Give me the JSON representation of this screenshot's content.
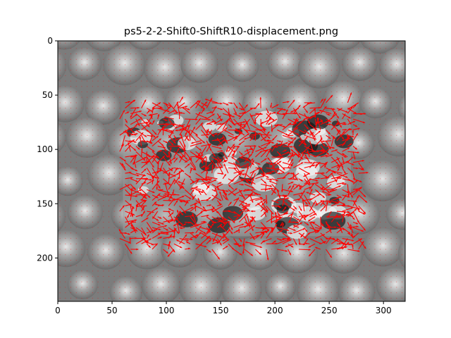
{
  "chart_data": {
    "type": "quiver",
    "title": "ps5-2-2-Shift0-ShiftR10-displacement.png",
    "xlabel": "",
    "ylabel": "",
    "xlim": [
      0,
      320
    ],
    "ylim": [
      240,
      0
    ],
    "y_inverted": true,
    "xticks": [
      0,
      50,
      100,
      150,
      200,
      250,
      300
    ],
    "yticks": [
      0,
      50,
      100,
      150,
      200
    ],
    "grid": false,
    "image": {
      "description": "grayscale textured background (pebble-like blobs) with a darker, high-contrast patch in the center",
      "extent_x": [
        0,
        320
      ],
      "extent_y": [
        0,
        240
      ]
    },
    "arrows": {
      "color": "#ff0000",
      "grid_spacing": 5,
      "active_region": {
        "x": [
          55,
          280
        ],
        "y": [
          55,
          195
        ]
      },
      "note": "dense field of red displacement arrows over the shifted central patch; near-zero dots elsewhere"
    },
    "colors": {
      "arrow": "#ff0000",
      "axes": "#000000",
      "background": "#ffffff"
    }
  }
}
